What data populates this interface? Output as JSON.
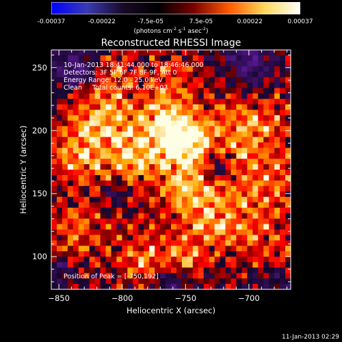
{
  "colorbar": {
    "ticks": [
      "-0.00037",
      "-0.00022",
      "-7.5e-05",
      "7.5e-05",
      "0.00022",
      "0.00037"
    ],
    "tick_values": [
      -0.00037,
      -0.00022,
      -7.5e-05,
      7.5e-05,
      0.00022,
      0.00037
    ],
    "unit_parts": {
      "a": "(photons cm",
      "b": "-2",
      "c": " s",
      "d": "-1",
      "e": " asec",
      "f": "-2",
      "g": ")"
    },
    "stops": [
      "#0000ff",
      "#3a3ab4",
      "#1a0a28",
      "#000000",
      "#780000",
      "#ff5a00",
      "#ffd85a",
      "#ffffff"
    ]
  },
  "chart_data": {
    "type": "heatmap",
    "title": "Reconstructed RHESSI Image",
    "xlabel": "Heliocentric X (arcsec)",
    "ylabel": "Heliocentric Y (arcsec)",
    "xlim": [
      -856,
      -667
    ],
    "ylim": [
      74,
      264
    ],
    "xticks": [
      -850,
      -800,
      -750,
      -700
    ],
    "yticks": [
      100,
      150,
      200,
      250
    ],
    "peak": [
      -750,
      192
    ],
    "annotations": [
      "10-Jan-2013 18:41:44.000 to 18:46:46.000",
      "Detectors: 3F 5F 6F 7F 8F 9F, Att 0",
      "Energy Range: 12.0 - 25.0 keV",
      "Clean     Total counts: 6.10E+03"
    ],
    "peak_label": "Position of Peak = [-750,192]"
  },
  "footer": "11-Jan-2013 02:29"
}
